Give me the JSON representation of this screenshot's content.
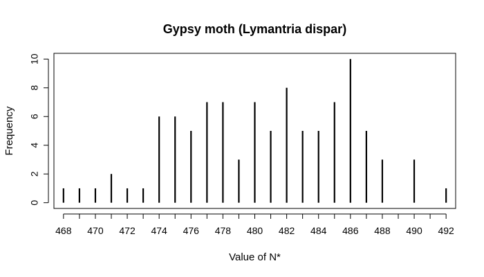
{
  "chart_data": {
    "type": "bar",
    "title": "Gypsy moth (Lymantria dispar)",
    "xlabel": "Value of N*",
    "ylabel": "Frequency",
    "x": [
      468,
      469,
      470,
      471,
      472,
      473,
      474,
      475,
      476,
      477,
      478,
      479,
      480,
      481,
      482,
      483,
      484,
      485,
      486,
      487,
      488,
      490,
      492
    ],
    "values": [
      1,
      1,
      1,
      2,
      1,
      1,
      6,
      6,
      5,
      7,
      7,
      3,
      7,
      5,
      8,
      5,
      5,
      7,
      10,
      5,
      3,
      3,
      1
    ],
    "xlim": [
      467.4,
      492.6
    ],
    "ylim": [
      -0.4,
      10.4
    ],
    "x_ticks": [
      468,
      469,
      470,
      471,
      472,
      473,
      474,
      475,
      476,
      477,
      478,
      479,
      480,
      481,
      482,
      483,
      484,
      485,
      486,
      487,
      488,
      489,
      490,
      491,
      492
    ],
    "x_tick_labels": [
      "468",
      "470",
      "472",
      "474",
      "476",
      "478",
      "480",
      "482",
      "484",
      "486",
      "488",
      "490",
      "492"
    ],
    "y_ticks": [
      0,
      2,
      4,
      6,
      8,
      10
    ],
    "grid": false,
    "bar_color": "#000000"
  }
}
